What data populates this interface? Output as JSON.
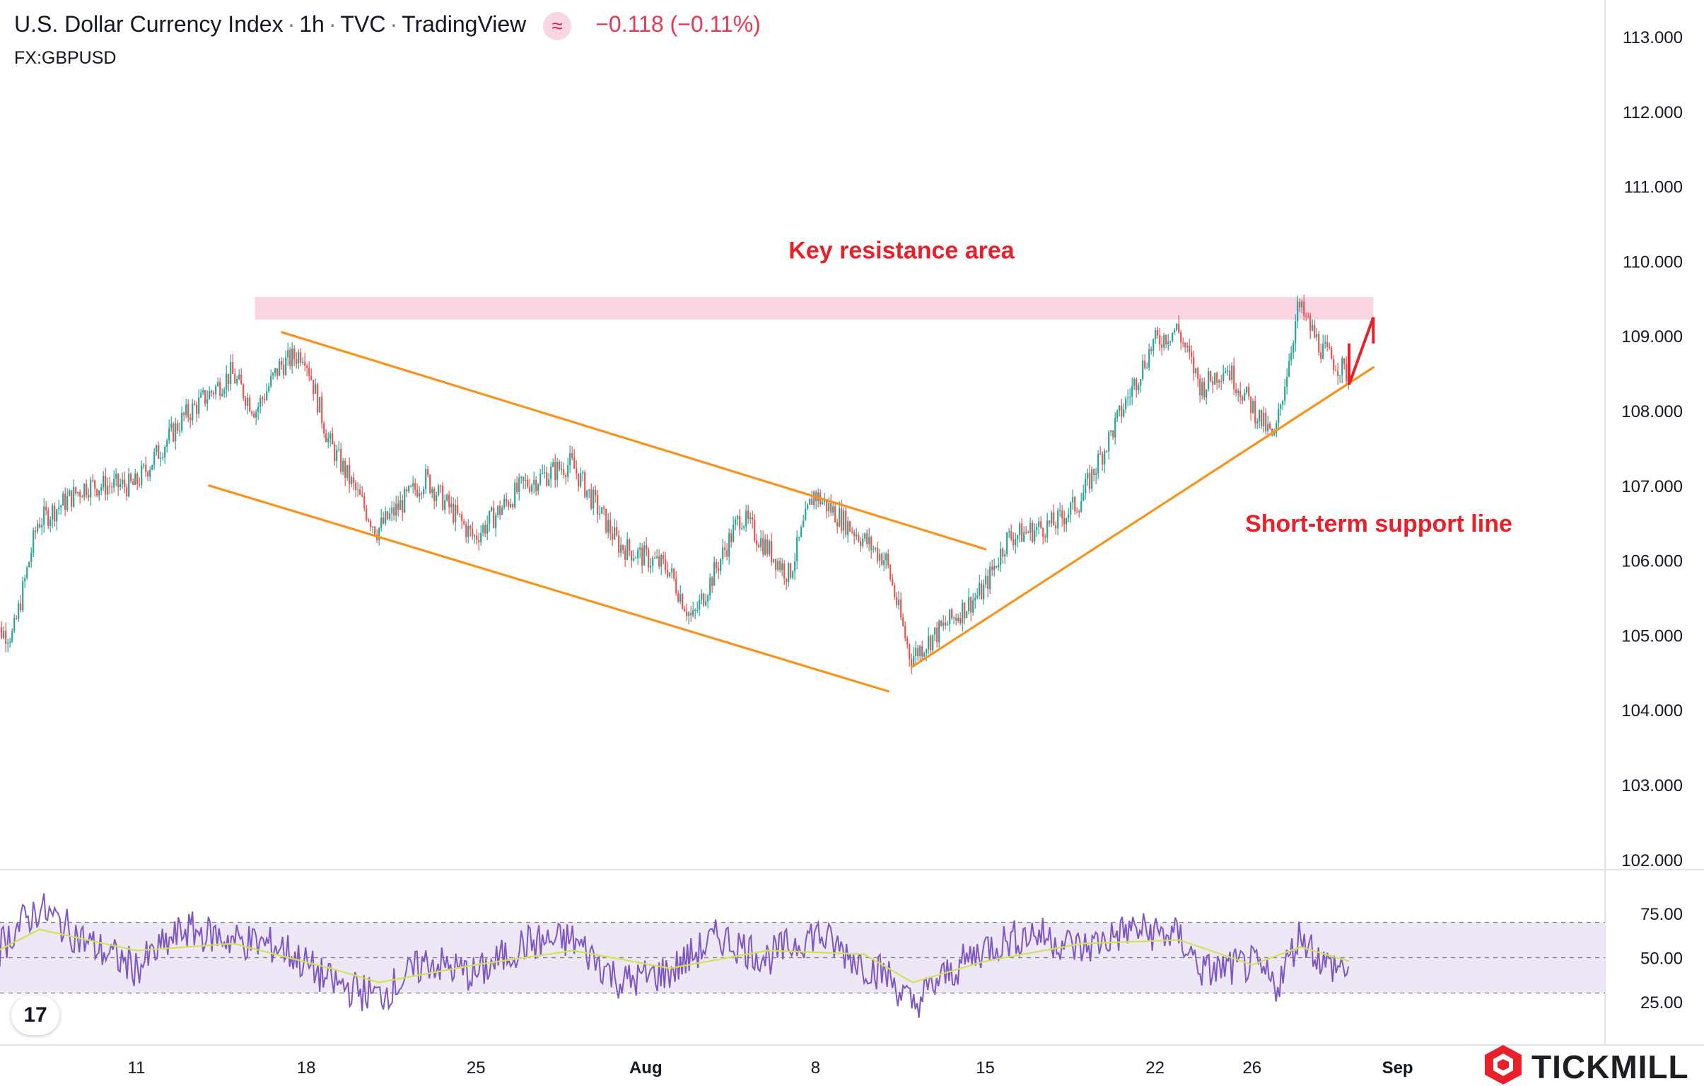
{
  "header": {
    "title": "U.S. Dollar Currency Index",
    "interval": "1h",
    "source": "TVC",
    "platform": "TradingView",
    "change": "−0.118 (−0.11%)",
    "symbol": "FX:GBPUSD",
    "badge_icon": "≈"
  },
  "brand": {
    "name": "TICKMILL",
    "tv_logo": "17"
  },
  "colors": {
    "up": "#26a69a",
    "down": "#ef5350",
    "trend": "#f7931e",
    "resistance": "#f9d5e3",
    "annotation": "#e8202a",
    "rsi": "#7e57c2",
    "rsi_ma": "#d4e157",
    "rsi_band": "#ede7f6"
  },
  "chart_data": [
    {
      "type": "candlestick",
      "title": "U.S. Dollar Currency Index · 1h · TVC · TradingView",
      "ylim": [
        102.0,
        113.0
      ],
      "y_ticks": [
        "113.000",
        "112.000",
        "111.000",
        "110.000",
        "109.000",
        "108.000",
        "107.000",
        "106.000",
        "105.000",
        "104.000",
        "103.000",
        "102.000"
      ],
      "x_ticks": [
        "11",
        "18",
        "25",
        "Aug",
        "8",
        "15",
        "22",
        "26",
        "Sep"
      ],
      "price_path": [
        {
          "x": "2024-07-05",
          "y": 105.1
        },
        {
          "x": "2024-07-06",
          "y": 105.0
        },
        {
          "x": "2024-07-07",
          "y": 106.5
        },
        {
          "x": "2024-07-09",
          "y": 107.0
        },
        {
          "x": "2024-07-11",
          "y": 107.0
        },
        {
          "x": "2024-07-13",
          "y": 107.9
        },
        {
          "x": "2024-07-15",
          "y": 108.5
        },
        {
          "x": "2024-07-16",
          "y": 108.0
        },
        {
          "x": "2024-07-17",
          "y": 108.6
        },
        {
          "x": "2024-07-18",
          "y": 108.8
        },
        {
          "x": "2024-07-19",
          "y": 107.6
        },
        {
          "x": "2024-07-21",
          "y": 106.4
        },
        {
          "x": "2024-07-23",
          "y": 107.1
        },
        {
          "x": "2024-07-25",
          "y": 106.3
        },
        {
          "x": "2024-07-27",
          "y": 107.0
        },
        {
          "x": "2024-07-29",
          "y": 107.3
        },
        {
          "x": "2024-07-31",
          "y": 106.2
        },
        {
          "x": "2024-08-02",
          "y": 105.9
        },
        {
          "x": "2024-08-03",
          "y": 105.2
        },
        {
          "x": "2024-08-05",
          "y": 106.6
        },
        {
          "x": "2024-08-07",
          "y": 105.8
        },
        {
          "x": "2024-08-08",
          "y": 106.9
        },
        {
          "x": "2024-08-10",
          "y": 106.3
        },
        {
          "x": "2024-08-11",
          "y": 106.0
        },
        {
          "x": "2024-08-12",
          "y": 104.7
        },
        {
          "x": "2024-08-13",
          "y": 105.0
        },
        {
          "x": "2024-08-15",
          "y": 105.6
        },
        {
          "x": "2024-08-16",
          "y": 106.3
        },
        {
          "x": "2024-08-18",
          "y": 106.5
        },
        {
          "x": "2024-08-19",
          "y": 106.8
        },
        {
          "x": "2024-08-21",
          "y": 108.2
        },
        {
          "x": "2024-08-22",
          "y": 108.9
        },
        {
          "x": "2024-08-23",
          "y": 109.1
        },
        {
          "x": "2024-08-24",
          "y": 108.3
        },
        {
          "x": "2024-08-25",
          "y": 108.6
        },
        {
          "x": "2024-08-26",
          "y": 108.1
        },
        {
          "x": "2024-08-27",
          "y": 107.6
        },
        {
          "x": "2024-08-28",
          "y": 109.4
        },
        {
          "x": "2024-08-29",
          "y": 108.8
        },
        {
          "x": "2024-08-30",
          "y": 108.5
        }
      ],
      "resistance_zone": {
        "label": "Key resistance area",
        "from": "2024-07-16",
        "to": "2024-08-31",
        "y": [
          109.22,
          109.52
        ]
      },
      "trendlines": [
        {
          "name": "channel-upper",
          "points": [
            {
              "x": "2024-07-17",
              "y": 109.05
            },
            {
              "x": "2024-08-15",
              "y": 106.15
            }
          ]
        },
        {
          "name": "channel-lower",
          "points": [
            {
              "x": "2024-07-14",
              "y": 107.0
            },
            {
              "x": "2024-08-11",
              "y": 104.25
            }
          ]
        },
        {
          "name": "short-term-support",
          "label": "Short-term support line",
          "points": [
            {
              "x": "2024-08-12",
              "y": 104.58
            },
            {
              "x": "2024-08-31",
              "y": 108.58
            }
          ]
        }
      ],
      "projection_arrow": {
        "points": [
          {
            "x": "2024-08-30",
            "y": 108.9
          },
          {
            "x": "2024-08-30",
            "y": 108.35
          },
          {
            "x": "2024-08-31",
            "y": 109.25
          }
        ],
        "end": {
          "x": "2024-08-31",
          "y": 108.9
        }
      }
    },
    {
      "type": "line",
      "title": "RSI",
      "ylim": [
        14,
        96
      ],
      "y_ticks": [
        "75.00",
        "50.00",
        "25.00"
      ],
      "band": [
        30,
        70
      ],
      "midline": 50,
      "series": [
        {
          "path": [
            {
              "x": "2024-07-05",
              "y": 50
            },
            {
              "x": "2024-07-06",
              "y": 66
            },
            {
              "x": "2024-07-07",
              "y": 78
            },
            {
              "x": "2024-07-09",
              "y": 58
            },
            {
              "x": "2024-07-11",
              "y": 44
            },
            {
              "x": "2024-07-13",
              "y": 66
            },
            {
              "x": "2024-07-15",
              "y": 60
            },
            {
              "x": "2024-07-17",
              "y": 56
            },
            {
              "x": "2024-07-19",
              "y": 36
            },
            {
              "x": "2024-07-21",
              "y": 28
            },
            {
              "x": "2024-07-23",
              "y": 48
            },
            {
              "x": "2024-07-25",
              "y": 40
            },
            {
              "x": "2024-07-27",
              "y": 58
            },
            {
              "x": "2024-07-29",
              "y": 60
            },
            {
              "x": "2024-07-31",
              "y": 36
            },
            {
              "x": "2024-08-02",
              "y": 42
            },
            {
              "x": "2024-08-04",
              "y": 62
            },
            {
              "x": "2024-08-06",
              "y": 50
            },
            {
              "x": "2024-08-08",
              "y": 64
            },
            {
              "x": "2024-08-10",
              "y": 46
            },
            {
              "x": "2024-08-11",
              "y": 40
            },
            {
              "x": "2024-08-12",
              "y": 22
            },
            {
              "x": "2024-08-13",
              "y": 36
            },
            {
              "x": "2024-08-15",
              "y": 56
            },
            {
              "x": "2024-08-17",
              "y": 64
            },
            {
              "x": "2024-08-19",
              "y": 55
            },
            {
              "x": "2024-08-21",
              "y": 66
            },
            {
              "x": "2024-08-23",
              "y": 62
            },
            {
              "x": "2024-08-24",
              "y": 42
            },
            {
              "x": "2024-08-26",
              "y": 46
            },
            {
              "x": "2024-08-27",
              "y": 34
            },
            {
              "x": "2024-08-28",
              "y": 64
            },
            {
              "x": "2024-08-29",
              "y": 46
            },
            {
              "x": "2024-08-30",
              "y": 44
            }
          ]
        },
        {
          "path": [
            {
              "x": "2024-07-05",
              "y": 52
            },
            {
              "x": "2024-07-07",
              "y": 66
            },
            {
              "x": "2024-07-11",
              "y": 54
            },
            {
              "x": "2024-07-15",
              "y": 58
            },
            {
              "x": "2024-07-19",
              "y": 44
            },
            {
              "x": "2024-07-21",
              "y": 36
            },
            {
              "x": "2024-07-25",
              "y": 46
            },
            {
              "x": "2024-07-29",
              "y": 54
            },
            {
              "x": "2024-08-02",
              "y": 44
            },
            {
              "x": "2024-08-06",
              "y": 54
            },
            {
              "x": "2024-08-10",
              "y": 52
            },
            {
              "x": "2024-08-12",
              "y": 36
            },
            {
              "x": "2024-08-15",
              "y": 48
            },
            {
              "x": "2024-08-19",
              "y": 58
            },
            {
              "x": "2024-08-23",
              "y": 60
            },
            {
              "x": "2024-08-26",
              "y": 46
            },
            {
              "x": "2024-08-28",
              "y": 56
            },
            {
              "x": "2024-08-30",
              "y": 48
            }
          ]
        }
      ]
    }
  ]
}
